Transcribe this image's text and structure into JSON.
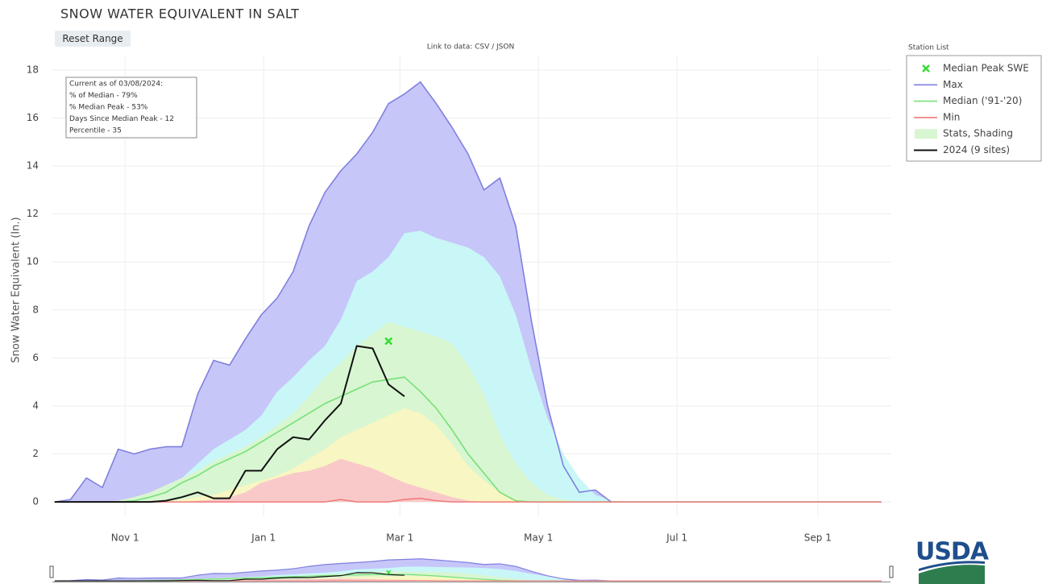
{
  "page": {
    "reset_button": "Reset Range",
    "data_link": "Link to data: CSV / JSON",
    "logo": "USDA"
  },
  "chart_data": {
    "type": "line",
    "title": "SNOW WATER EQUIVALENT IN SALT",
    "y_label": "Snow Water Equivalent (In.)",
    "xlim": [
      -1,
      368
    ],
    "xticks": [
      {
        "value": 31,
        "label": "Nov 1"
      },
      {
        "value": 92,
        "label": "Jan 1"
      },
      {
        "value": 152,
        "label": "Mar 1"
      },
      {
        "value": 213,
        "label": "May 1"
      },
      {
        "value": 274,
        "label": "Jul 1"
      },
      {
        "value": 336,
        "label": "Sep 1"
      }
    ],
    "ylim": [
      -0.6,
      18.6
    ],
    "yticks": [
      0,
      2,
      4,
      6,
      8,
      10,
      12,
      14,
      16,
      18
    ],
    "grid": true,
    "legend_title": "Station List",
    "legend_position": "right",
    "annotation": [
      "Current as of 03/08/2024:",
      "% of Median - 79%",
      "% Median Peak - 53%",
      "Days Since Median Peak - 12",
      "Percentile - 35"
    ],
    "x": [
      0,
      7,
      14,
      21,
      28,
      35,
      42,
      49,
      56,
      63,
      70,
      77,
      84,
      91,
      98,
      105,
      112,
      119,
      126,
      133,
      140,
      147,
      154,
      161,
      168,
      175,
      182,
      189,
      196,
      203,
      210,
      217,
      224,
      231,
      238,
      245,
      252,
      259,
      266,
      273,
      280,
      287,
      294,
      301,
      308,
      315,
      322,
      329,
      336,
      343,
      350,
      357,
      364
    ],
    "median_peak": {
      "name": "Median Peak SWE",
      "x": 147,
      "value": 6.7,
      "color": "#33dd33"
    },
    "series": [
      {
        "name": "Max",
        "color": "#8080e0",
        "fill": "#c6c6f9",
        "values": [
          0,
          0.1,
          1.0,
          0.6,
          2.2,
          2.0,
          2.2,
          2.3,
          2.3,
          4.5,
          5.9,
          5.7,
          6.8,
          7.8,
          8.5,
          9.6,
          11.5,
          12.9,
          13.8,
          14.5,
          15.4,
          16.6,
          17.0,
          17.5,
          16.6,
          15.6,
          14.5,
          13.0,
          13.5,
          11.5,
          7.5,
          4.0,
          1.5,
          0.4,
          0.5,
          0,
          0,
          0,
          0,
          0,
          0,
          0,
          0,
          0,
          0,
          0,
          0,
          0,
          0,
          0,
          0,
          0,
          0
        ]
      },
      {
        "name": "Median ('91-'20)",
        "color": "#77e077",
        "values": [
          0,
          0,
          0,
          0,
          0,
          0.05,
          0.2,
          0.4,
          0.8,
          1.1,
          1.5,
          1.8,
          2.1,
          2.5,
          2.9,
          3.3,
          3.7,
          4.1,
          4.4,
          4.7,
          5.0,
          5.1,
          5.2,
          4.6,
          3.9,
          3.0,
          2.0,
          1.2,
          0.4,
          0.05,
          0,
          0,
          0,
          0,
          0,
          0,
          0,
          0,
          0,
          0,
          0,
          0,
          0,
          0,
          0,
          0,
          0,
          0,
          0,
          0,
          0,
          0,
          0
        ]
      },
      {
        "name": "Min",
        "color": "#f07a7a",
        "values": [
          0,
          0,
          0,
          0,
          0,
          0,
          0,
          0,
          0,
          0,
          0,
          0,
          0,
          0,
          0,
          0,
          0,
          0,
          0.1,
          0,
          0,
          0,
          0.1,
          0.15,
          0.05,
          0,
          0,
          0,
          0,
          0,
          0,
          0,
          0,
          0,
          0,
          0,
          0,
          0,
          0,
          0,
          0,
          0,
          0,
          0,
          0,
          0,
          0,
          0,
          0,
          0,
          0,
          0,
          0
        ]
      },
      {
        "name": "2024 (9 sites)",
        "color": "#111111",
        "values": [
          0,
          0,
          0,
          0,
          0,
          0,
          0,
          0.05,
          0.2,
          0.4,
          0.15,
          0.15,
          1.3,
          1.3,
          2.2,
          2.7,
          2.6,
          3.4,
          4.1,
          6.5,
          6.4,
          4.9,
          4.4,
          null,
          null,
          null,
          null,
          null,
          null,
          null,
          null,
          null,
          null,
          null,
          null,
          null,
          null,
          null,
          null,
          null,
          null,
          null,
          null,
          null,
          null,
          null,
          null,
          null,
          null,
          null,
          null,
          null,
          null
        ]
      }
    ],
    "shading": {
      "name": "Stats, Shading",
      "color": "#d8f6d2",
      "bands": [
        {
          "color": "#c9f7f7",
          "values": [
            0,
            0,
            0,
            0,
            0,
            0.1,
            0.3,
            0.6,
            1.0,
            1.6,
            2.2,
            2.6,
            3.0,
            3.6,
            4.6,
            5.2,
            5.9,
            6.5,
            7.6,
            9.2,
            9.6,
            10.2,
            11.2,
            11.3,
            11.0,
            10.8,
            10.6,
            10.2,
            9.4,
            7.8,
            5.5,
            3.5,
            2.0,
            1.0,
            0.3,
            0.05,
            0,
            0,
            0,
            0,
            0,
            0,
            0,
            0,
            0,
            0,
            0,
            0,
            0,
            0,
            0,
            0,
            0
          ]
        },
        {
          "color": "#d8f6d2",
          "values": [
            0,
            0,
            0,
            0,
            0.05,
            0.2,
            0.4,
            0.7,
            1.0,
            1.3,
            1.7,
            2.0,
            2.3,
            2.7,
            3.2,
            3.7,
            4.4,
            5.2,
            5.8,
            6.5,
            7.0,
            7.5,
            7.3,
            7.1,
            6.9,
            6.6,
            5.7,
            4.5,
            2.8,
            1.6,
            0.8,
            0.3,
            0.1,
            0,
            0,
            0,
            0,
            0,
            0,
            0,
            0,
            0,
            0,
            0,
            0,
            0,
            0,
            0,
            0,
            0,
            0,
            0,
            0
          ]
        },
        {
          "color": "#f8f6c2",
          "values": [
            0,
            0,
            0,
            0,
            0,
            0,
            0,
            0,
            0.1,
            0.2,
            0.3,
            0.5,
            0.7,
            0.9,
            1.1,
            1.4,
            1.8,
            2.2,
            2.7,
            3.0,
            3.3,
            3.6,
            3.9,
            3.7,
            3.2,
            2.4,
            1.5,
            0.9,
            0.4,
            0.1,
            0,
            0,
            0,
            0,
            0,
            0,
            0,
            0,
            0,
            0,
            0,
            0,
            0,
            0,
            0,
            0,
            0,
            0,
            0,
            0,
            0,
            0,
            0
          ]
        },
        {
          "color": "#f9c9c9",
          "values": [
            0,
            0,
            0,
            0,
            0,
            0,
            0,
            0,
            0,
            0.05,
            0.1,
            0.2,
            0.4,
            0.8,
            1.0,
            1.2,
            1.3,
            1.5,
            1.8,
            1.6,
            1.4,
            1.1,
            0.8,
            0.6,
            0.4,
            0.2,
            0.05,
            0,
            0,
            0,
            0,
            0,
            0,
            0,
            0,
            0,
            0,
            0,
            0,
            0,
            0,
            0,
            0,
            0,
            0,
            0,
            0,
            0,
            0,
            0,
            0,
            0,
            0
          ]
        }
      ]
    }
  }
}
